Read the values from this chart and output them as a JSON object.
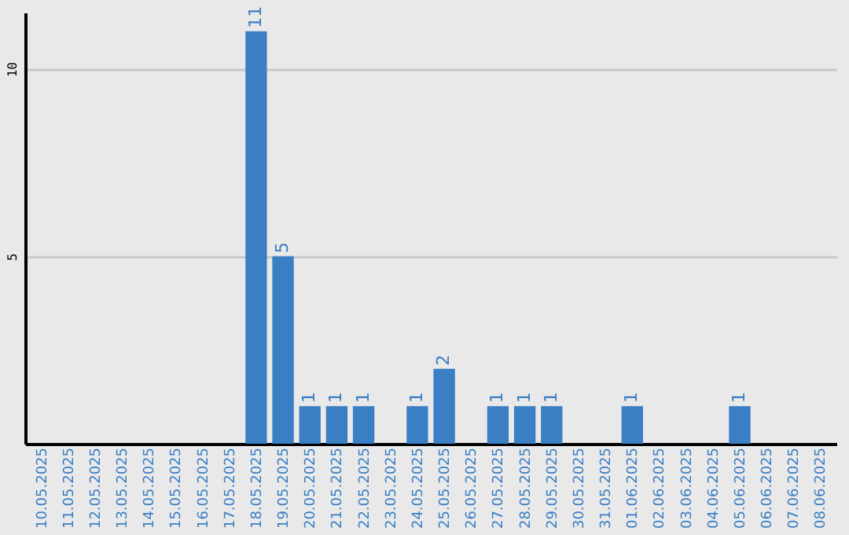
{
  "chart_data": {
    "type": "bar",
    "categories": [
      "10.05.2025",
      "11.05.2025",
      "12.05.2025",
      "13.05.2025",
      "14.05.2025",
      "15.05.2025",
      "16.05.2025",
      "17.05.2025",
      "18.05.2025",
      "19.05.2025",
      "20.05.2025",
      "21.05.2025",
      "22.05.2025",
      "23.05.2025",
      "24.05.2025",
      "25.05.2025",
      "26.05.2025",
      "27.05.2025",
      "28.05.2025",
      "29.05.2025",
      "30.05.2025",
      "31.05.2025",
      "01.06.2025",
      "02.06.2025",
      "03.06.2025",
      "04.06.2025",
      "05.06.2025",
      "06.06.2025",
      "07.06.2025",
      "08.06.2025"
    ],
    "values": [
      0,
      0,
      0,
      0,
      0,
      0,
      0,
      0,
      11,
      5,
      1,
      1,
      1,
      0,
      1,
      2,
      0,
      1,
      1,
      1,
      0,
      0,
      1,
      0,
      0,
      0,
      1,
      0,
      0,
      0
    ],
    "value_labels": [
      null,
      null,
      null,
      null,
      null,
      null,
      null,
      null,
      "11",
      "5",
      "1",
      "1",
      "1",
      null,
      "1",
      "2",
      null,
      "1",
      "1",
      "1",
      null,
      null,
      "1",
      null,
      null,
      null,
      "1",
      null,
      null,
      null
    ],
    "color": "#3a7ec4",
    "ylim": [
      0,
      11.5
    ],
    "yticks": [
      5,
      10
    ],
    "grid": "y"
  }
}
